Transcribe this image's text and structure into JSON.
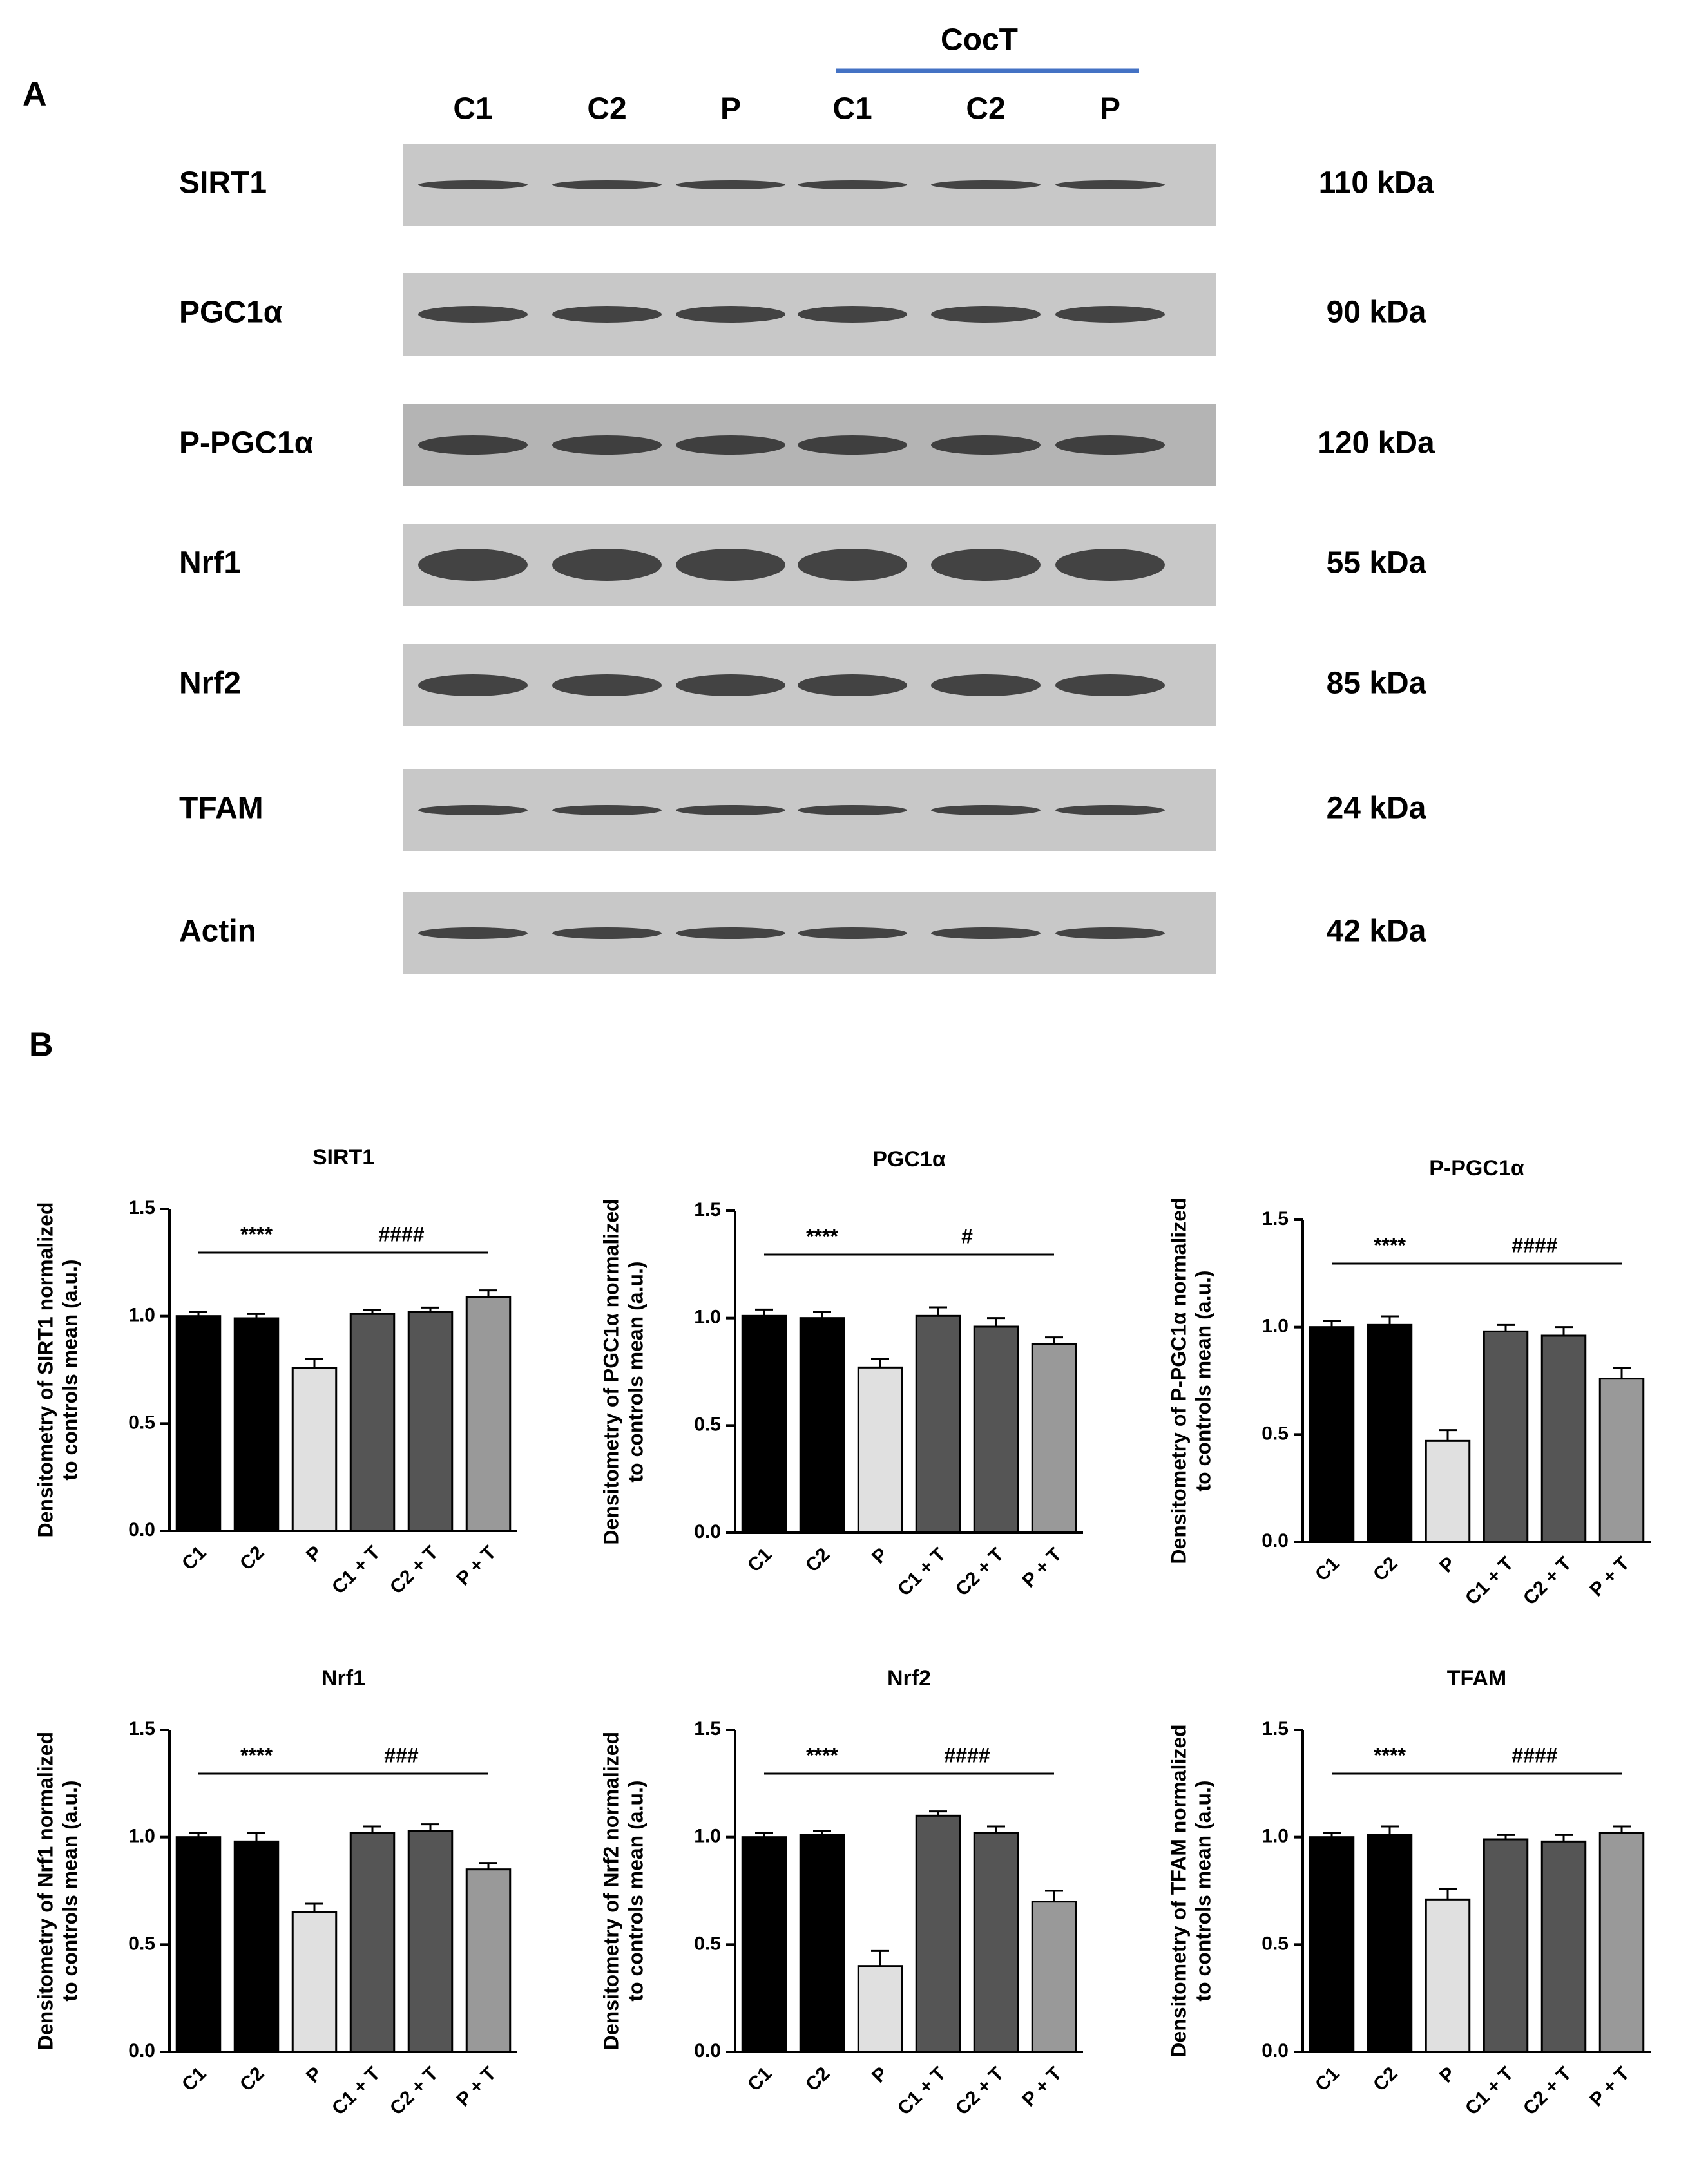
{
  "panel_a": {
    "label": "A",
    "group_label": "CocT",
    "lanes": [
      "C1",
      "C2",
      "P",
      "C1",
      "C2",
      "P"
    ],
    "rows": [
      {
        "protein": "SIRT1",
        "size": "110 kDa"
      },
      {
        "protein": "PGC1α",
        "size": "90 kDa"
      },
      {
        "protein": "P-PGC1α",
        "size": "120 kDa"
      },
      {
        "protein": "Nrf1",
        "size": "55  kDa"
      },
      {
        "protein": "Nrf2",
        "size": "85  kDa"
      },
      {
        "protein": "TFAM",
        "size": "24 kDa"
      },
      {
        "protein": "Actin",
        "size": "42  kDa"
      }
    ]
  },
  "panel_b": {
    "label": "B"
  },
  "chart_data": [
    {
      "type": "bar",
      "title": "SIRT1",
      "ylabel": [
        "Densitometry of SIRT1 normalized",
        "to controls mean (a.u.)"
      ],
      "categories": [
        "C1",
        "C2",
        "P",
        "C1 + T",
        "C2 + T",
        "P + T"
      ],
      "values": [
        1.0,
        0.99,
        0.76,
        1.01,
        1.02,
        1.09
      ],
      "errors": [
        0.02,
        0.02,
        0.04,
        0.02,
        0.02,
        0.03
      ],
      "colors": [
        "#000000",
        "#000000",
        "#e0e0e0",
        "#555555",
        "#555555",
        "#999999"
      ],
      "ylim": [
        0,
        1.5
      ],
      "yticks": [
        {
          "value": 0,
          "label": "0.0"
        },
        {
          "value": 0.5,
          "label": "0.5"
        },
        {
          "value": 1,
          "label": "1.0"
        },
        {
          "value": 1.5,
          "label": "1.5"
        }
      ],
      "annotations": [
        "****",
        "####"
      ]
    },
    {
      "type": "bar",
      "title": "PGC1α",
      "ylabel": [
        "Densitometry of PGC1α normalized",
        "to controls mean (a.u.)"
      ],
      "categories": [
        "C1",
        "C2",
        "P",
        "C1 + T",
        "C2 + T",
        "P + T"
      ],
      "values": [
        1.01,
        1.0,
        0.77,
        1.01,
        0.96,
        0.88
      ],
      "errors": [
        0.03,
        0.03,
        0.04,
        0.04,
        0.04,
        0.03
      ],
      "colors": [
        "#000000",
        "#000000",
        "#e0e0e0",
        "#555555",
        "#555555",
        "#999999"
      ],
      "ylim": [
        0,
        1.5
      ],
      "yticks": [
        {
          "value": 0,
          "label": "0.0"
        },
        {
          "value": 0.5,
          "label": "0.5"
        },
        {
          "value": 1,
          "label": "1.0"
        },
        {
          "value": 1.5,
          "label": "1.5"
        }
      ],
      "annotations": [
        "****",
        "#"
      ]
    },
    {
      "type": "bar",
      "title": "P-PGC1α",
      "ylabel": [
        "Densitometry of P-PGC1α normalized",
        "to controls mean (a.u.)"
      ],
      "categories": [
        "C1",
        "C2",
        "P",
        "C1 + T",
        "C2 + T",
        "P + T"
      ],
      "values": [
        1.0,
        1.01,
        0.47,
        0.98,
        0.96,
        0.76
      ],
      "errors": [
        0.03,
        0.04,
        0.05,
        0.03,
        0.04,
        0.05
      ],
      "colors": [
        "#000000",
        "#000000",
        "#e0e0e0",
        "#555555",
        "#555555",
        "#999999"
      ],
      "ylim": [
        0,
        1.5
      ],
      "yticks": [
        {
          "value": 0,
          "label": "0.0"
        },
        {
          "value": 0.5,
          "label": "0.5"
        },
        {
          "value": 1,
          "label": "1.0"
        },
        {
          "value": 1.5,
          "label": "1.5"
        }
      ],
      "annotations": [
        "****",
        "####"
      ]
    },
    {
      "type": "bar",
      "title": "Nrf1",
      "ylabel": [
        "Densitometry of Nrf1 normalized",
        "to controls mean (a.u.)"
      ],
      "categories": [
        "C1",
        "C2",
        "P",
        "C1 + T",
        "C2 + T",
        "P + T"
      ],
      "values": [
        1.0,
        0.98,
        0.65,
        1.02,
        1.03,
        0.85
      ],
      "errors": [
        0.02,
        0.04,
        0.04,
        0.03,
        0.03,
        0.03
      ],
      "colors": [
        "#000000",
        "#000000",
        "#e0e0e0",
        "#555555",
        "#555555",
        "#999999"
      ],
      "ylim": [
        0,
        1.5
      ],
      "yticks": [
        {
          "value": 0,
          "label": "0.0"
        },
        {
          "value": 0.5,
          "label": "0.5"
        },
        {
          "value": 1,
          "label": "1.0"
        },
        {
          "value": 1.5,
          "label": "1.5"
        }
      ],
      "annotations": [
        "****",
        "###"
      ]
    },
    {
      "type": "bar",
      "title": "Nrf2",
      "ylabel": [
        "Densitometry of Nrf2 normalized",
        "to controls mean (a.u.)"
      ],
      "categories": [
        "C1",
        "C2",
        "P",
        "C1 + T",
        "C2 + T",
        "P + T"
      ],
      "values": [
        1.0,
        1.01,
        0.4,
        1.1,
        1.02,
        0.7
      ],
      "errors": [
        0.02,
        0.02,
        0.07,
        0.02,
        0.03,
        0.05
      ],
      "colors": [
        "#000000",
        "#000000",
        "#e0e0e0",
        "#555555",
        "#555555",
        "#999999"
      ],
      "ylim": [
        0,
        1.5
      ],
      "yticks": [
        {
          "value": 0,
          "label": "0.0"
        },
        {
          "value": 0.5,
          "label": "0.5"
        },
        {
          "value": 1,
          "label": "1.0"
        },
        {
          "value": 1.5,
          "label": "1.5"
        }
      ],
      "annotations": [
        "****",
        "####"
      ]
    },
    {
      "type": "bar",
      "title": "TFAM",
      "ylabel": [
        "Densitometry of TFAM normalized",
        "to controls mean (a.u.)"
      ],
      "categories": [
        "C1",
        "C2",
        "P",
        "C1 + T",
        "C2 + T",
        "P + T"
      ],
      "values": [
        1.0,
        1.01,
        0.71,
        0.99,
        0.98,
        1.02
      ],
      "errors": [
        0.02,
        0.04,
        0.05,
        0.02,
        0.03,
        0.03
      ],
      "colors": [
        "#000000",
        "#000000",
        "#e0e0e0",
        "#555555",
        "#555555",
        "#999999"
      ],
      "ylim": [
        0,
        1.5
      ],
      "yticks": [
        {
          "value": 0,
          "label": "0.0"
        },
        {
          "value": 0.5,
          "label": "0.5"
        },
        {
          "value": 1,
          "label": "1.0"
        },
        {
          "value": 1.5,
          "label": "1.5"
        }
      ],
      "annotations": [
        "****",
        "####"
      ]
    }
  ]
}
